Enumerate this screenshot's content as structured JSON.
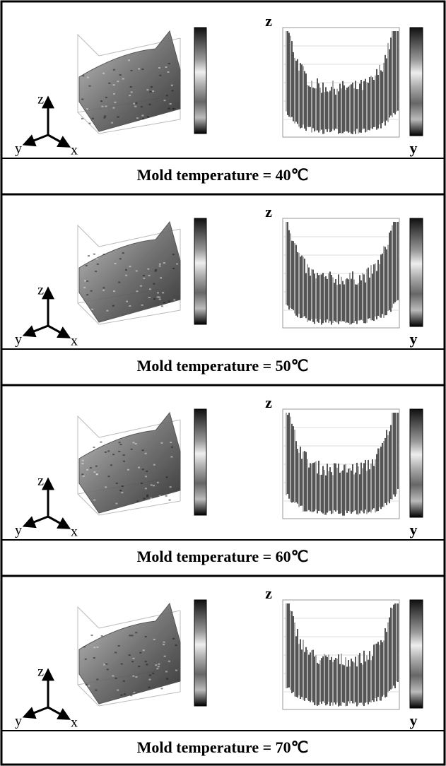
{
  "panels": [
    {
      "caption": "Mold temperature = 40℃",
      "triad": {
        "z": "z",
        "y": "y",
        "x": "x"
      },
      "right": {
        "z": "z",
        "y": "y"
      }
    },
    {
      "caption": "Mold temperature = 50℃",
      "triad": {
        "z": "z",
        "y": "y",
        "x": "x"
      },
      "right": {
        "z": "z",
        "y": "y"
      }
    },
    {
      "caption": "Mold temperature = 60℃",
      "triad": {
        "z": "z",
        "y": "y",
        "x": "x"
      },
      "right": {
        "z": "z",
        "y": "y"
      }
    },
    {
      "caption": "Mold temperature = 70℃",
      "triad": {
        "z": "z",
        "y": "y",
        "x": "x"
      },
      "right": {
        "z": "z",
        "y": "y"
      }
    }
  ]
}
